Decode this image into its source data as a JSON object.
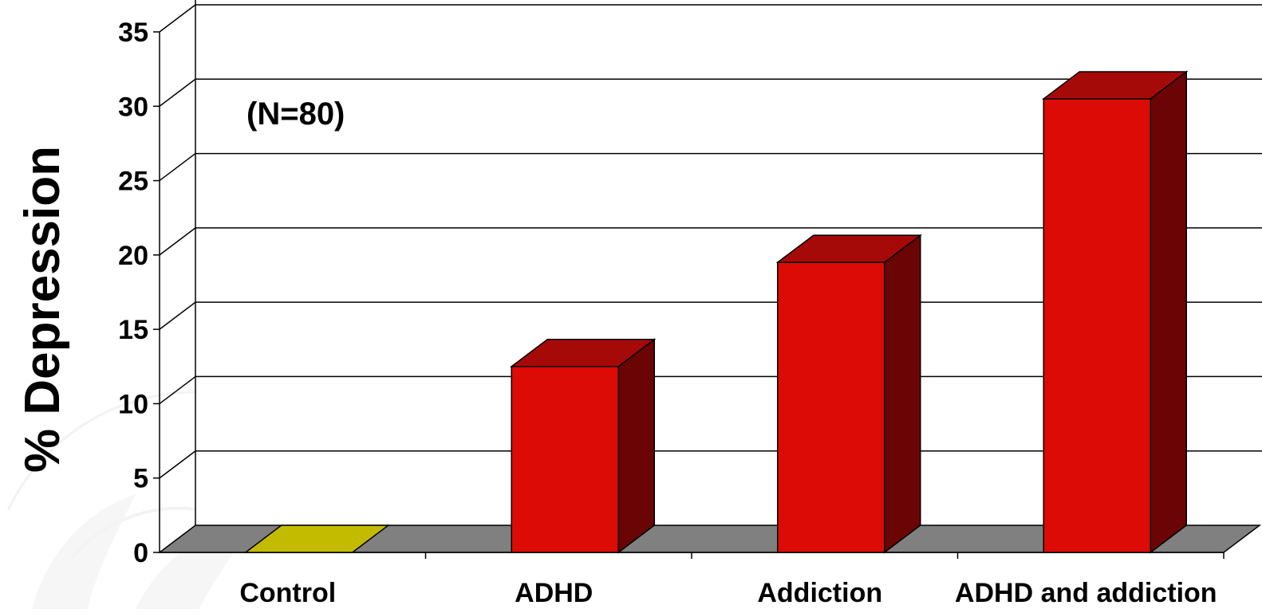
{
  "chart_data": {
    "type": "bar",
    "ylabel": "% Depression",
    "annotation": "(N=80)",
    "categories": [
      "Control",
      "ADHD",
      "Addiction",
      "ADHD and addiction"
    ],
    "values": [
      0,
      12.5,
      19.5,
      30.5
    ],
    "ylim": [
      0,
      35
    ],
    "yticks": [
      "0",
      "5",
      "10",
      "15",
      "20",
      "25",
      "30",
      "35"
    ],
    "grid": true,
    "legend": "none",
    "colors": {
      "bar_front": "#dd0b05",
      "bar_top": "#a60a08",
      "bar_side": "#6b0404",
      "control_bar": "#c3bb00",
      "floor": "#808080",
      "watermark": "#e6e6e6"
    }
  }
}
